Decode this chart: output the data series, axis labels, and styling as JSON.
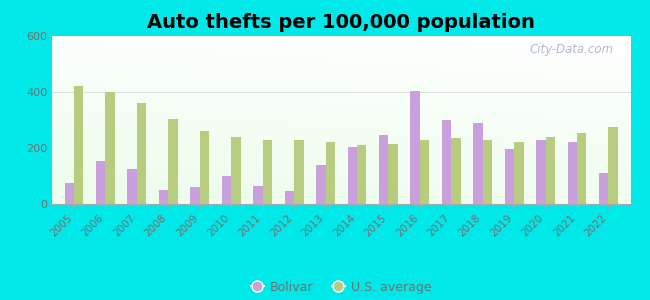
{
  "title": "Auto thefts per 100,000 population",
  "years": [
    2005,
    2006,
    2007,
    2008,
    2009,
    2010,
    2011,
    2012,
    2013,
    2014,
    2015,
    2016,
    2017,
    2018,
    2019,
    2020,
    2021,
    2022
  ],
  "bolivar": [
    75,
    155,
    125,
    50,
    60,
    100,
    65,
    45,
    140,
    205,
    245,
    405,
    300,
    290,
    195,
    230,
    220,
    110
  ],
  "us_average": [
    420,
    400,
    360,
    305,
    260,
    240,
    230,
    230,
    220,
    210,
    215,
    230,
    235,
    230,
    220,
    240,
    255,
    275
  ],
  "bolivar_color": "#c9a0dc",
  "us_avg_color": "#b8cc80",
  "outer_background": "#00e8e8",
  "ylim": [
    0,
    600
  ],
  "yticks": [
    0,
    200,
    400,
    600
  ],
  "bar_width": 0.3,
  "legend_bolivar": "Bolivar",
  "legend_us": "U.S. average",
  "watermark": "City-Data.com",
  "tick_color": "#707070",
  "title_fontsize": 14
}
